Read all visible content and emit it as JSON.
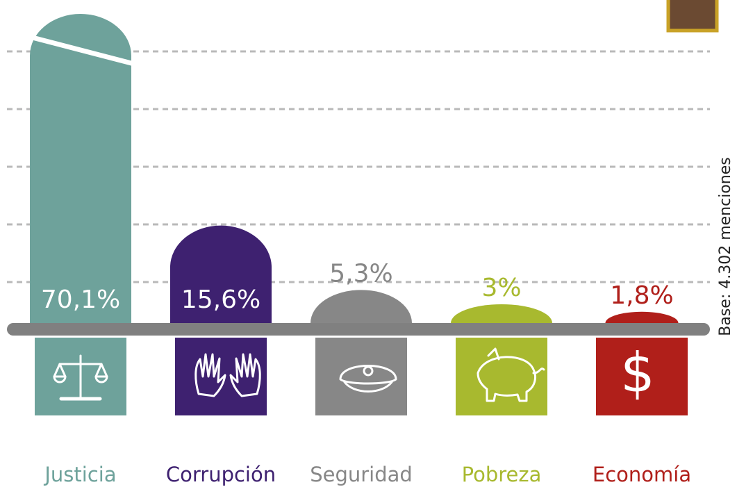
{
  "chart_data": {
    "type": "bar",
    "categories": [
      "Justicia",
      "Corrupción",
      "Seguridad",
      "Pobreza",
      "Economía"
    ],
    "values": [
      70.1,
      15.6,
      5.3,
      3,
      1.8
    ],
    "value_labels": [
      "70,1%",
      "15,6%",
      "5,3%",
      "3%",
      "1,8%"
    ],
    "colors": [
      "#6ea29b",
      "#3e2170",
      "#878787",
      "#a8b92f",
      "#b01f1a"
    ],
    "ylim": [
      0,
      16
    ],
    "note": "Base: 4.302 menciones"
  }
}
